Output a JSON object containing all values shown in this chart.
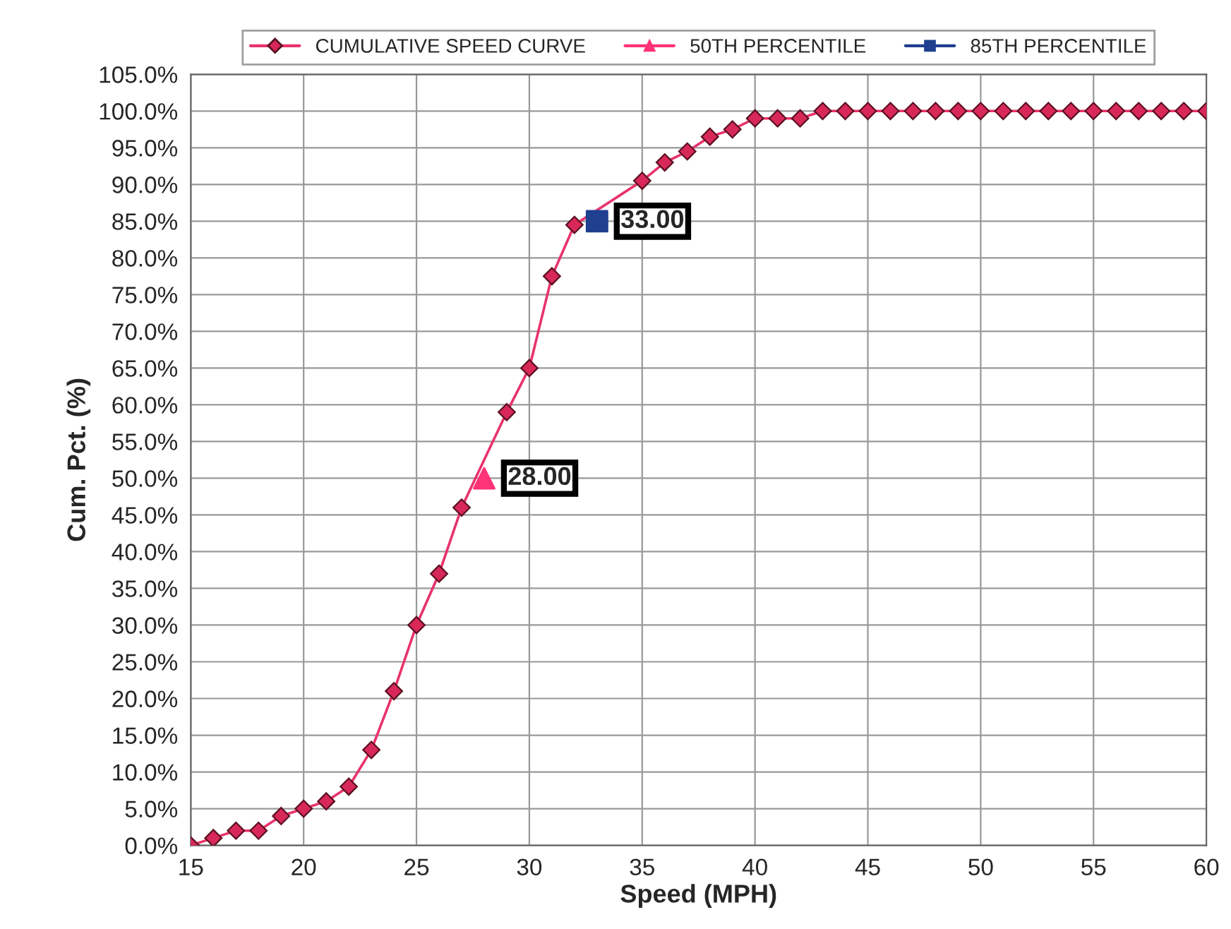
{
  "chart_data": {
    "type": "line",
    "xlabel": "Speed (MPH)",
    "ylabel": "Cum. Pct. (%)",
    "series": [
      {
        "name": "CUMULATIVE SPEED CURVE",
        "color": "#e8336b",
        "marker": "diamond",
        "x": [
          15,
          16,
          17,
          18,
          19,
          20,
          21,
          22,
          23,
          24,
          25,
          26,
          27,
          28,
          29,
          30,
          31,
          32,
          33,
          34,
          35,
          36,
          37,
          38,
          39,
          40,
          41,
          42,
          43,
          44,
          45,
          46,
          47,
          48,
          49,
          50,
          51,
          52,
          53,
          54,
          55,
          56,
          57,
          58,
          59,
          60
        ],
        "values": [
          0,
          1,
          2,
          2,
          4,
          5,
          6,
          8,
          13,
          21,
          30,
          37,
          46,
          null,
          59,
          65,
          77.5,
          84.5,
          null,
          null,
          90.5,
          93,
          94.5,
          96.5,
          97.5,
          99,
          99,
          99,
          100,
          100,
          100,
          100,
          100,
          100,
          100,
          100,
          100,
          100,
          100,
          100,
          100,
          100,
          100,
          100,
          100,
          100
        ]
      },
      {
        "name": "50TH PERCENTILE",
        "type": "scatter",
        "color": "#ff3377",
        "marker": "triangle",
        "x": [
          28
        ],
        "values": [
          50
        ]
      },
      {
        "name": "85TH PERCENTILE",
        "type": "scatter",
        "color": "#1f3f8f",
        "marker": "square",
        "x": [
          33
        ],
        "values": [
          85
        ]
      }
    ],
    "annotations": [
      {
        "text": "28.00",
        "x": 28,
        "y": 50
      },
      {
        "text": "33.00",
        "x": 33,
        "y": 85
      }
    ],
    "xlim": [
      15,
      60
    ],
    "xticks": [
      15,
      20,
      25,
      30,
      35,
      40,
      45,
      50,
      55,
      60
    ],
    "ylim": [
      0,
      105
    ],
    "yticks": [
      {
        "value": 0,
        "label": "0.0%"
      },
      {
        "value": 5,
        "label": "5.0%"
      },
      {
        "value": 10,
        "label": "10.0%"
      },
      {
        "value": 15,
        "label": "15.0%"
      },
      {
        "value": 20,
        "label": "20.0%"
      },
      {
        "value": 25,
        "label": "25.0%"
      },
      {
        "value": 30,
        "label": "30.0%"
      },
      {
        "value": 35,
        "label": "35.0%"
      },
      {
        "value": 40,
        "label": "40.0%"
      },
      {
        "value": 45,
        "label": "45.0%"
      },
      {
        "value": 50,
        "label": "50.0%"
      },
      {
        "value": 55,
        "label": "55.0%"
      },
      {
        "value": 60,
        "label": "60.0%"
      },
      {
        "value": 65,
        "label": "65.0%"
      },
      {
        "value": 70,
        "label": "70.0%"
      },
      {
        "value": 75,
        "label": "75.0%"
      },
      {
        "value": 80,
        "label": "80.0%"
      },
      {
        "value": 85,
        "label": "85.0%"
      },
      {
        "value": 90,
        "label": "90.0%"
      },
      {
        "value": 95,
        "label": "95.0%"
      },
      {
        "value": 100,
        "label": "100.0%"
      },
      {
        "value": 105,
        "label": "105.0%"
      }
    ],
    "grid": true,
    "legend": "top",
    "line_style": "solid"
  }
}
